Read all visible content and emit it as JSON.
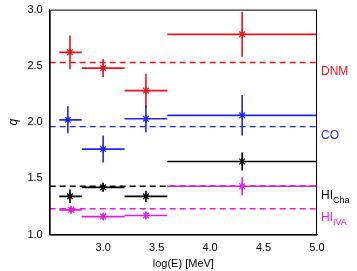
{
  "chart_data": {
    "type": "scatter",
    "x_label": "log(E) [MeV]",
    "y_label": "q",
    "xlim": [
      2.5,
      5
    ],
    "ylim": [
      1,
      3
    ],
    "xticks": [
      3,
      3.5,
      4,
      4.5,
      5
    ],
    "yticks": [
      1,
      1.5,
      2,
      2.5,
      3
    ],
    "legend": false,
    "grid": false,
    "series": [
      {
        "name": "DNM",
        "color": "#e8141e",
        "marker": "star",
        "line_style": "dashed",
        "reference": 2.53,
        "x": [
          2.69,
          3.0,
          3.4,
          4.3
        ],
        "x_low": [
          2.59,
          2.8,
          3.2,
          3.6
        ],
        "x_high": [
          2.8,
          3.2,
          3.6,
          5.0
        ],
        "values": [
          2.62,
          2.48,
          2.28,
          2.78
        ],
        "y_err": [
          0.15,
          0.08,
          0.15,
          0.2
        ]
      },
      {
        "name": "CO",
        "color": "#1e28e6",
        "marker": "star",
        "line_style": "dashed",
        "reference": 1.96,
        "x": [
          2.67,
          3.0,
          3.4,
          4.3
        ],
        "x_low": [
          2.59,
          2.8,
          3.2,
          3.6
        ],
        "x_high": [
          2.8,
          3.2,
          3.6,
          5.0
        ],
        "values": [
          2.02,
          1.76,
          2.03,
          2.06
        ],
        "y_err": [
          0.12,
          0.12,
          0.12,
          0.18
        ]
      },
      {
        "name": "HI",
        "name_subscript": "Cha",
        "color": "#000000",
        "marker": "star",
        "line_style": "dashed",
        "reference": 1.43,
        "x": [
          2.69,
          3.0,
          3.4,
          4.3
        ],
        "x_low": [
          2.59,
          2.8,
          3.2,
          3.6
        ],
        "x_high": [
          2.8,
          3.2,
          3.6,
          5.0
        ],
        "values": [
          1.34,
          1.42,
          1.34,
          1.65
        ],
        "y_err": [
          0.06,
          0.04,
          0.05,
          0.08
        ]
      },
      {
        "name": "HI",
        "name_subscript": "IVA",
        "color": "#e619e6",
        "marker": "star",
        "line_style": "dashed",
        "reference": 1.23,
        "x": [
          2.7,
          3.0,
          3.4,
          4.3
        ],
        "x_low": [
          2.59,
          2.8,
          3.2,
          3.6
        ],
        "x_high": [
          2.8,
          3.2,
          3.6,
          5.0
        ],
        "values": [
          1.22,
          1.16,
          1.17,
          1.43
        ],
        "y_err": [
          0.03,
          0.03,
          0.03,
          0.08
        ]
      }
    ]
  }
}
